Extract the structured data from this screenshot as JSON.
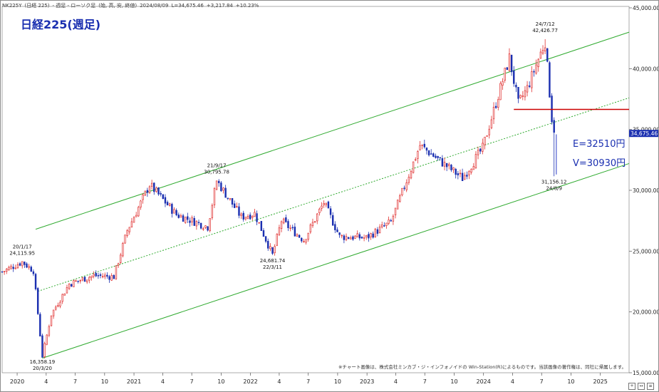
{
  "header": {
    "symbol": "NK225Y",
    "name": "(日経 225)",
    "period": "- 週足 - ローソク足",
    "fields": "(始, 高, 安, 終値)",
    "date": "2024/08/09",
    "last": "L=34,675.46",
    "change": "+3,217.84",
    "pct": "+10.23%"
  },
  "title": "日経225(週足)",
  "colors": {
    "up": "#e03030",
    "down": "#1a2fb0",
    "channel": "#2faa2f",
    "resistance": "#cc0000",
    "projection": "#4a5ad0",
    "price_box": "#1a2fb0"
  },
  "chart_data": {
    "type": "candlestick",
    "title": "日経225(週足)",
    "ylim": [
      15000,
      45000
    ],
    "y_ticks": [
      "15,000.00",
      "20,000.00",
      "25,000.00",
      "30,000.00",
      "35,000.00",
      "40,000.00",
      "45,000.00"
    ],
    "x_ticks": [
      "2020",
      "4",
      "7",
      "10",
      "2021",
      "4",
      "7",
      "10",
      "2022",
      "4",
      "7",
      "10",
      "2023",
      "4",
      "7",
      "10",
      "2024",
      "4",
      "7",
      "10",
      "2025"
    ],
    "x_range": [
      "2019-11-15",
      "2025-04-01"
    ],
    "anchors": [
      [
        "2019-11-15",
        23300
      ],
      [
        "2020-01-17",
        24116
      ],
      [
        "2020-02-21",
        23400
      ],
      [
        "2020-03-20",
        16358
      ],
      [
        "2020-04-17",
        19800
      ],
      [
        "2020-06-12",
        22300
      ],
      [
        "2020-08-28",
        23000
      ],
      [
        "2020-10-30",
        22900
      ],
      [
        "2020-12-11",
        26700
      ],
      [
        "2021-02-19",
        30467
      ],
      [
        "2021-05-14",
        28000
      ],
      [
        "2021-08-20",
        27000
      ],
      [
        "2021-09-17",
        30796
      ],
      [
        "2021-12-03",
        27800
      ],
      [
        "2022-01-14",
        28100
      ],
      [
        "2022-03-11",
        24682
      ],
      [
        "2022-04-08",
        27500
      ],
      [
        "2022-06-17",
        25900
      ],
      [
        "2022-08-19",
        29000
      ],
      [
        "2022-10-07",
        26200
      ],
      [
        "2022-12-30",
        26100
      ],
      [
        "2023-03-17",
        27400
      ],
      [
        "2023-06-16",
        33700
      ],
      [
        "2023-10-27",
        30990
      ],
      [
        "2023-12-29",
        33460
      ],
      [
        "2024-03-22",
        40888
      ],
      [
        "2024-04-19",
        37100
      ],
      [
        "2024-05-17",
        38400
      ],
      [
        "2024-07-12",
        42227
      ],
      [
        "2024-08-02",
        35910
      ],
      [
        "2024-08-09",
        35025
      ]
    ],
    "last_price_label": "34,675.46",
    "annotations": [
      {
        "date": "2020-01-17",
        "value": 24115.95,
        "lines": [
          "20/1/17",
          "24,115.95"
        ],
        "pos": "above"
      },
      {
        "date": "2020-03-20",
        "value": 16358.19,
        "lines": [
          "16,358.19",
          "20/3/20"
        ],
        "pos": "below"
      },
      {
        "date": "2021-09-17",
        "value": 30795.78,
        "lines": [
          "21/9/17",
          "30,795.78"
        ],
        "pos": "above"
      },
      {
        "date": "2022-03-11",
        "value": 24681.74,
        "lines": [
          "24,681.74",
          "22/3/11"
        ],
        "pos": "below"
      },
      {
        "date": "2024-07-12",
        "value": 42426.77,
        "lines": [
          "24/7/12",
          "42,426.77"
        ],
        "pos": "above"
      },
      {
        "date": "2024-08-09",
        "value": 31156.12,
        "lines": [
          "31,156.12",
          "24/8/9"
        ],
        "pos": "below"
      }
    ],
    "channel": {
      "upper": [
        [
          "2020-02-28",
          26800
        ],
        [
          "2025-04-01",
          43000
        ]
      ],
      "mid": [
        [
          "2020-03-06",
          21700
        ],
        [
          "2025-04-01",
          37600
        ]
      ],
      "lower": [
        [
          "2020-03-20",
          16200
        ],
        [
          "2025-04-01",
          32200
        ]
      ]
    },
    "resistance": {
      "value": 36650,
      "from": "2024-04-05",
      "to": "2025-04-01"
    },
    "projection": {
      "date": "2024-08-16",
      "from": 34600,
      "to": 31300
    },
    "labels": [
      "E=32510円",
      "V=30930円"
    ],
    "footnote": "※チャート画像は、株式会社ミンカブ・ジ・インフォノイドの Win-Station(R)によるものです。当該画像の著作権は、同社に帰属します。"
  }
}
